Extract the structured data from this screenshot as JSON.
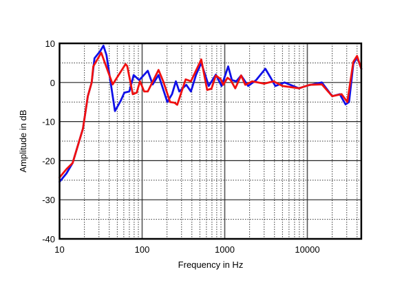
{
  "chart_data": {
    "type": "line",
    "title": "",
    "xlabel": "Frequency in Hz",
    "ylabel": "Amplitude in dB",
    "xscale": "log",
    "xlim": [
      10,
      45000
    ],
    "ylim": [
      -40,
      10
    ],
    "grid": true,
    "legend": "none",
    "xticks": [
      10,
      100,
      1000,
      10000
    ],
    "xtick_labels": [
      "10",
      "100",
      "1000",
      "10000"
    ],
    "yticks": [
      10,
      0,
      -10,
      -20,
      -30,
      -40
    ],
    "ytick_labels": [
      "10",
      "0",
      "-10",
      "-20",
      "-30",
      "-40"
    ],
    "series": [
      {
        "color": "#1010e8",
        "points": [
          [
            10,
            -25.4
          ],
          [
            12.1,
            -23.3
          ],
          [
            14.4,
            -20.6
          ],
          [
            19.2,
            -11.8
          ],
          [
            22,
            -3.5
          ],
          [
            24.5,
            0
          ],
          [
            26.5,
            6.2
          ],
          [
            31,
            8
          ],
          [
            34,
            9.4
          ],
          [
            37,
            7
          ],
          [
            46.9,
            -7.3
          ],
          [
            55,
            -4.7
          ],
          [
            61,
            -2.6
          ],
          [
            70,
            -2.3
          ],
          [
            79,
            1.9
          ],
          [
            92,
            0.6
          ],
          [
            117,
            3
          ],
          [
            134,
            -0.5
          ],
          [
            158,
            1.9
          ],
          [
            202,
            -5
          ],
          [
            230,
            -3
          ],
          [
            256,
            0.3
          ],
          [
            282,
            -2.3
          ],
          [
            342,
            -0.6
          ],
          [
            390,
            -2.3
          ],
          [
            450,
            2
          ],
          [
            520,
            5
          ],
          [
            593,
            1.3
          ],
          [
            640,
            -0.9
          ],
          [
            780,
            2
          ],
          [
            915,
            -0.9
          ],
          [
            1100,
            4.1
          ],
          [
            1220,
            0.6
          ],
          [
            1380,
            0.3
          ],
          [
            1580,
            1.8
          ],
          [
            1920,
            -0.9
          ],
          [
            2400,
            0.6
          ],
          [
            3100,
            3.5
          ],
          [
            3600,
            1.2
          ],
          [
            4100,
            -0.9
          ],
          [
            5300,
            0
          ],
          [
            7900,
            -1.5
          ],
          [
            10000,
            -0.8
          ],
          [
            15000,
            0
          ],
          [
            20000,
            -3.5
          ],
          [
            24700,
            -3
          ],
          [
            29000,
            -5.6
          ],
          [
            32000,
            -5
          ],
          [
            36000,
            4.7
          ],
          [
            40000,
            6.5
          ],
          [
            44000,
            4.1
          ],
          [
            45000,
            3.5
          ]
        ]
      },
      {
        "color": "#f01010",
        "points": [
          [
            10,
            -24.3
          ],
          [
            12.1,
            -22.2
          ],
          [
            14.4,
            -20.6
          ],
          [
            19.2,
            -11.8
          ],
          [
            22,
            -3.5
          ],
          [
            24.5,
            0
          ],
          [
            25.6,
            4.1
          ],
          [
            32,
            7.6
          ],
          [
            44,
            -0.5
          ],
          [
            63,
            4.7
          ],
          [
            66,
            4.2
          ],
          [
            77,
            -3
          ],
          [
            86,
            -2.6
          ],
          [
            94,
            0.3
          ],
          [
            106,
            -2.3
          ],
          [
            117,
            -2.3
          ],
          [
            158,
            3.2
          ],
          [
            180,
            0.3
          ],
          [
            198,
            -2.3
          ],
          [
            218,
            -5
          ],
          [
            247,
            -5.2
          ],
          [
            266,
            -5.7
          ],
          [
            336,
            0.8
          ],
          [
            390,
            0.3
          ],
          [
            520,
            5.9
          ],
          [
            612,
            -1.9
          ],
          [
            690,
            -1.6
          ],
          [
            780,
            1.8
          ],
          [
            890,
            0.9
          ],
          [
            960,
            -0.6
          ],
          [
            1080,
            1.2
          ],
          [
            1180,
            0.6
          ],
          [
            1340,
            -1.5
          ],
          [
            1580,
            1.8
          ],
          [
            1770,
            -0.6
          ],
          [
            2150,
            0.3
          ],
          [
            3000,
            -0.3
          ],
          [
            3900,
            0.3
          ],
          [
            5000,
            -0.9
          ],
          [
            7900,
            -1.5
          ],
          [
            10700,
            -0.6
          ],
          [
            15000,
            -0.5
          ],
          [
            20000,
            -3.5
          ],
          [
            26000,
            -3
          ],
          [
            30500,
            -5
          ],
          [
            36000,
            5.3
          ],
          [
            40000,
            6.8
          ],
          [
            45000,
            3.5
          ]
        ]
      }
    ]
  }
}
